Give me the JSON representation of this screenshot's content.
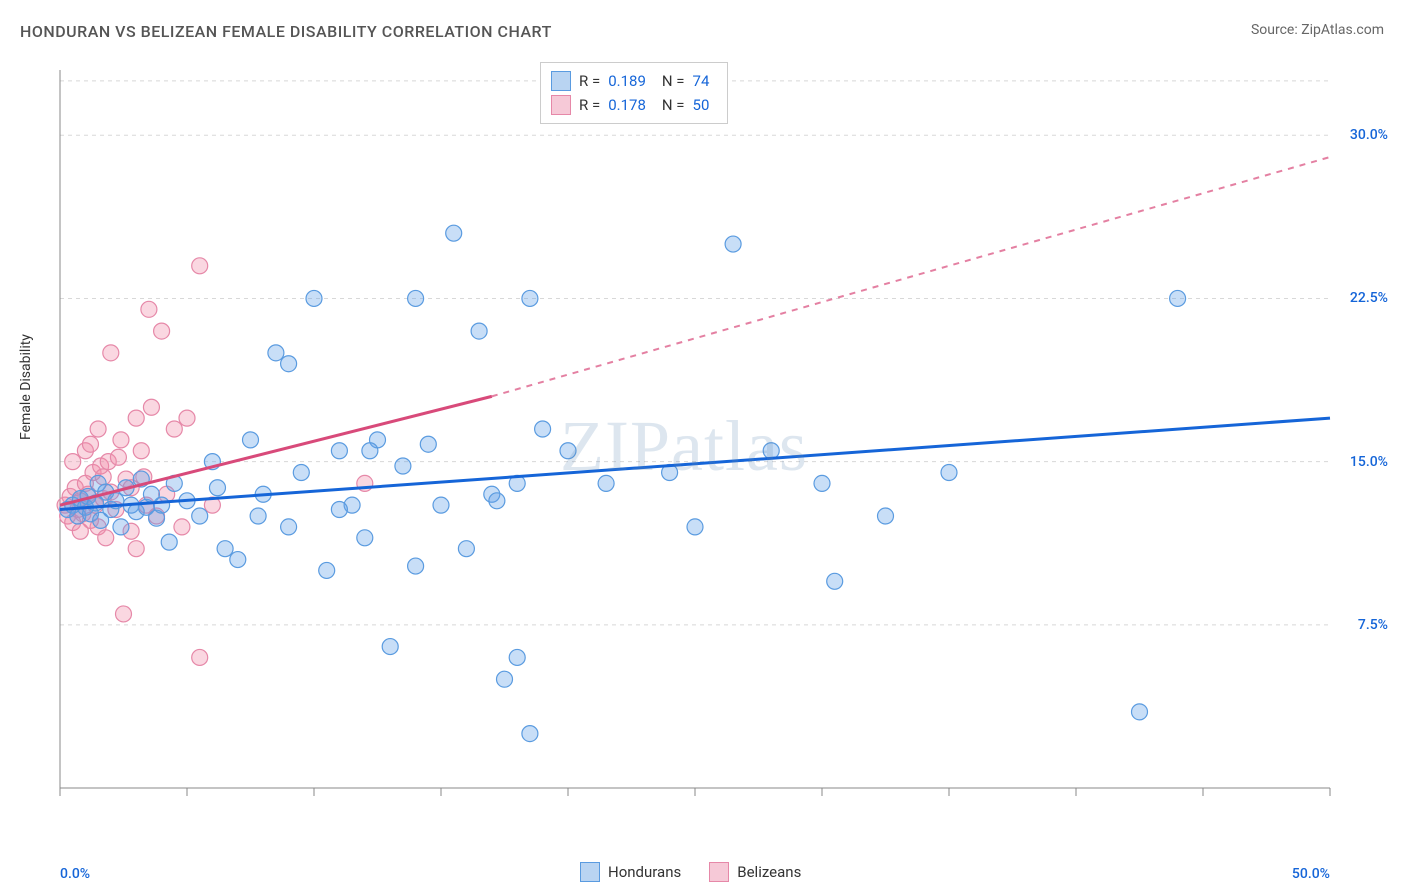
{
  "title": "HONDURAN VS BELIZEAN FEMALE DISABILITY CORRELATION CHART",
  "source": "Source: ZipAtlas.com",
  "watermark": "ZIPatlas",
  "y_axis_label": "Female Disability",
  "chart": {
    "type": "scatter",
    "background_color": "#ffffff",
    "grid_color": "#d8d8d8",
    "axis_line_color": "#888888",
    "tick_color": "#888888",
    "xlim": [
      0,
      50
    ],
    "ylim": [
      0,
      33
    ],
    "x_ticks_at": [
      0,
      5,
      10,
      15,
      20,
      25,
      30,
      35,
      40,
      45,
      50
    ],
    "y_grid_at": [
      7.5,
      15.0,
      22.5,
      30.0,
      32.5
    ],
    "y_tick_labels": [
      {
        "y": 7.5,
        "text": "7.5%",
        "color": "#1565d8"
      },
      {
        "y": 15.0,
        "text": "15.0%",
        "color": "#1565d8"
      },
      {
        "y": 22.5,
        "text": "22.5%",
        "color": "#1565d8"
      },
      {
        "y": 30.0,
        "text": "30.0%",
        "color": "#1565d8"
      }
    ],
    "x_tick_labels": [
      {
        "x": 0,
        "text": "0.0%",
        "color": "#1565d8",
        "align": "left"
      },
      {
        "x": 50,
        "text": "50.0%",
        "color": "#1565d8",
        "align": "right"
      }
    ],
    "marker_radius": 8,
    "marker_stroke_width": 1.2,
    "series": [
      {
        "name": "Hondurans",
        "fill": "rgba(96,160,232,0.35)",
        "stroke": "#5a9be0",
        "swatch_fill": "#b9d4f2",
        "swatch_stroke": "#5a9be0",
        "R": "0.189",
        "N": "74",
        "trend_color": "#1565d8",
        "trend_solid": {
          "x1": 0,
          "y1": 12.8,
          "x2": 50,
          "y2": 17.0
        },
        "trend_dashed": null,
        "points": [
          [
            0.3,
            12.8
          ],
          [
            0.5,
            13.0
          ],
          [
            0.7,
            12.5
          ],
          [
            0.8,
            13.3
          ],
          [
            1.0,
            12.9
          ],
          [
            1.1,
            13.4
          ],
          [
            1.2,
            12.6
          ],
          [
            1.4,
            13.1
          ],
          [
            1.5,
            14.0
          ],
          [
            1.6,
            12.3
          ],
          [
            1.8,
            13.6
          ],
          [
            2.0,
            12.8
          ],
          [
            2.2,
            13.2
          ],
          [
            2.4,
            12.0
          ],
          [
            2.6,
            13.8
          ],
          [
            2.8,
            13.0
          ],
          [
            3.0,
            12.7
          ],
          [
            3.2,
            14.2
          ],
          [
            3.4,
            12.9
          ],
          [
            3.6,
            13.5
          ],
          [
            3.8,
            12.4
          ],
          [
            4.0,
            13.0
          ],
          [
            4.5,
            14.0
          ],
          [
            5.0,
            13.2
          ],
          [
            5.5,
            12.5
          ],
          [
            6.0,
            15.0
          ],
          [
            6.5,
            11.0
          ],
          [
            7.0,
            10.5
          ],
          [
            7.5,
            16.0
          ],
          [
            8.0,
            13.5
          ],
          [
            8.5,
            20.0
          ],
          [
            9.0,
            12.0
          ],
          [
            9.5,
            14.5
          ],
          [
            10.0,
            22.5
          ],
          [
            10.5,
            10.0
          ],
          [
            11.0,
            15.5
          ],
          [
            11.5,
            13.0
          ],
          [
            12.0,
            11.5
          ],
          [
            12.5,
            16.0
          ],
          [
            13.0,
            6.5
          ],
          [
            13.5,
            14.8
          ],
          [
            14.0,
            10.2
          ],
          [
            14.5,
            15.8
          ],
          [
            15.0,
            13.0
          ],
          [
            15.5,
            25.5
          ],
          [
            16.0,
            11.0
          ],
          [
            16.5,
            21.0
          ],
          [
            17.0,
            13.5
          ],
          [
            17.5,
            5.0
          ],
          [
            18.0,
            14.0
          ],
          [
            18.5,
            22.5
          ],
          [
            19.0,
            16.5
          ],
          [
            18.5,
            2.5
          ],
          [
            17.2,
            13.2
          ],
          [
            20.0,
            15.5
          ],
          [
            12.2,
            15.5
          ],
          [
            21.5,
            14.0
          ],
          [
            24.0,
            14.5
          ],
          [
            25.0,
            12.0
          ],
          [
            18.0,
            6.0
          ],
          [
            26.5,
            25.0
          ],
          [
            28.0,
            15.5
          ],
          [
            30.0,
            14.0
          ],
          [
            32.5,
            12.5
          ],
          [
            30.5,
            9.5
          ],
          [
            35.0,
            14.5
          ],
          [
            44.0,
            22.5
          ],
          [
            42.5,
            3.5
          ],
          [
            14.0,
            22.5
          ],
          [
            9.0,
            19.5
          ],
          [
            6.2,
            13.8
          ],
          [
            4.3,
            11.3
          ],
          [
            7.8,
            12.5
          ],
          [
            11.0,
            12.8
          ]
        ]
      },
      {
        "name": "Belizeans",
        "fill": "rgba(240,140,170,0.35)",
        "stroke": "#e688a8",
        "swatch_fill": "#f6c9d7",
        "swatch_stroke": "#e688a8",
        "R": "0.178",
        "N": "50",
        "trend_color": "#d84a7a",
        "trend_solid": {
          "x1": 0,
          "y1": 13.0,
          "x2": 17,
          "y2": 18.0
        },
        "trend_dashed": {
          "x1": 17,
          "y1": 18.0,
          "x2": 50,
          "y2": 29.0
        },
        "points": [
          [
            0.2,
            13.0
          ],
          [
            0.3,
            12.5
          ],
          [
            0.4,
            13.4
          ],
          [
            0.5,
            12.2
          ],
          [
            0.6,
            13.8
          ],
          [
            0.7,
            12.8
          ],
          [
            0.8,
            13.2
          ],
          [
            0.9,
            12.6
          ],
          [
            1.0,
            14.0
          ],
          [
            1.1,
            13.5
          ],
          [
            1.2,
            12.3
          ],
          [
            1.3,
            14.5
          ],
          [
            1.4,
            13.0
          ],
          [
            1.5,
            12.0
          ],
          [
            1.6,
            14.8
          ],
          [
            1.7,
            13.3
          ],
          [
            1.8,
            11.5
          ],
          [
            1.9,
            15.0
          ],
          [
            2.0,
            13.6
          ],
          [
            2.2,
            12.8
          ],
          [
            2.4,
            16.0
          ],
          [
            2.6,
            14.2
          ],
          [
            2.8,
            11.8
          ],
          [
            3.0,
            17.0
          ],
          [
            3.2,
            15.5
          ],
          [
            3.4,
            13.0
          ],
          [
            3.6,
            17.5
          ],
          [
            3.8,
            12.5
          ],
          [
            4.0,
            21.0
          ],
          [
            1.0,
            15.5
          ],
          [
            4.2,
            13.5
          ],
          [
            2.0,
            20.0
          ],
          [
            4.5,
            16.5
          ],
          [
            4.8,
            12.0
          ],
          [
            5.0,
            17.0
          ],
          [
            3.5,
            22.0
          ],
          [
            5.5,
            24.0
          ],
          [
            2.5,
            8.0
          ],
          [
            6.0,
            13.0
          ],
          [
            3.0,
            11.0
          ],
          [
            1.5,
            16.5
          ],
          [
            0.5,
            15.0
          ],
          [
            2.3,
            15.2
          ],
          [
            1.7,
            14.3
          ],
          [
            0.8,
            11.8
          ],
          [
            1.2,
            15.8
          ],
          [
            2.8,
            13.8
          ],
          [
            3.3,
            14.3
          ],
          [
            5.5,
            6.0
          ],
          [
            12.0,
            14.0
          ]
        ]
      }
    ]
  },
  "bottom_legend": [
    {
      "label": "Hondurans",
      "fill": "#b9d4f2",
      "stroke": "#5a9be0"
    },
    {
      "label": "Belizeans",
      "fill": "#f6c9d7",
      "stroke": "#e688a8"
    }
  ]
}
